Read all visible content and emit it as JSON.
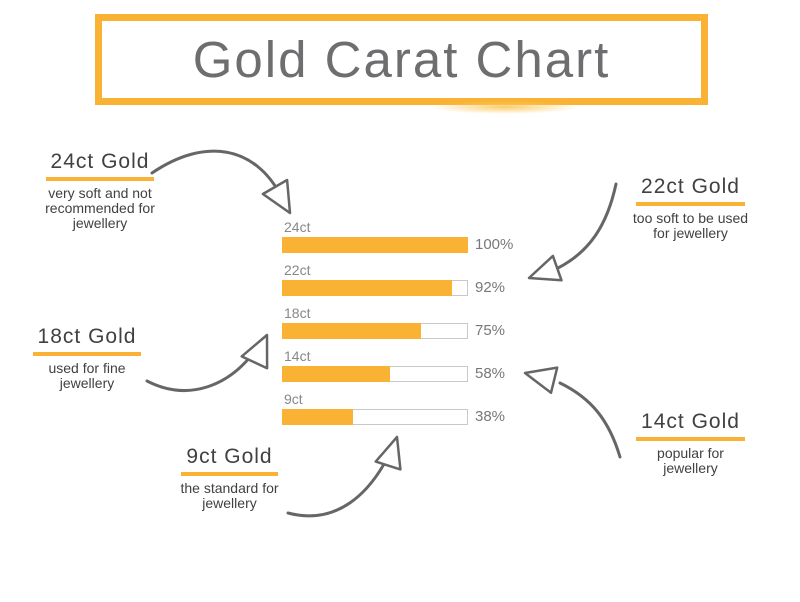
{
  "title": "Gold Carat Chart",
  "colors": {
    "gold": "#F9B234",
    "title_text": "#6D6E70",
    "chart_label_text": "#87888A",
    "chart_value_text": "#77787B",
    "annotation_text": "#414042",
    "arrow": "#656668",
    "track_border": "#C8C9CB",
    "track_fill": "#FFFFFF"
  },
  "chart_data": {
    "type": "bar",
    "orientation": "horizontal",
    "title": "Gold Carat Chart",
    "categories": [
      "24ct",
      "22ct",
      "18ct",
      "14ct",
      "9ct"
    ],
    "values": [
      100,
      92,
      75,
      58,
      38
    ],
    "value_suffix": "%",
    "xlim": [
      0,
      100
    ],
    "grid": false,
    "legend": false,
    "bar_color": "#F9B234"
  },
  "annotations": [
    {
      "id": "24ct",
      "title": "24ct Gold",
      "description": "very soft and not recommended for jewellery",
      "position": "top-left"
    },
    {
      "id": "22ct",
      "title": "22ct Gold",
      "description": "too soft to be used for jewellery",
      "position": "top-right"
    },
    {
      "id": "18ct",
      "title": "18ct Gold",
      "description": "used for fine jewellery",
      "position": "middle-left"
    },
    {
      "id": "9ct",
      "title": "9ct Gold",
      "description": "the standard for jewellery",
      "position": "bottom-center"
    },
    {
      "id": "14ct",
      "title": "14ct Gold",
      "description": "popular for jewellery",
      "position": "bottom-right"
    }
  ]
}
